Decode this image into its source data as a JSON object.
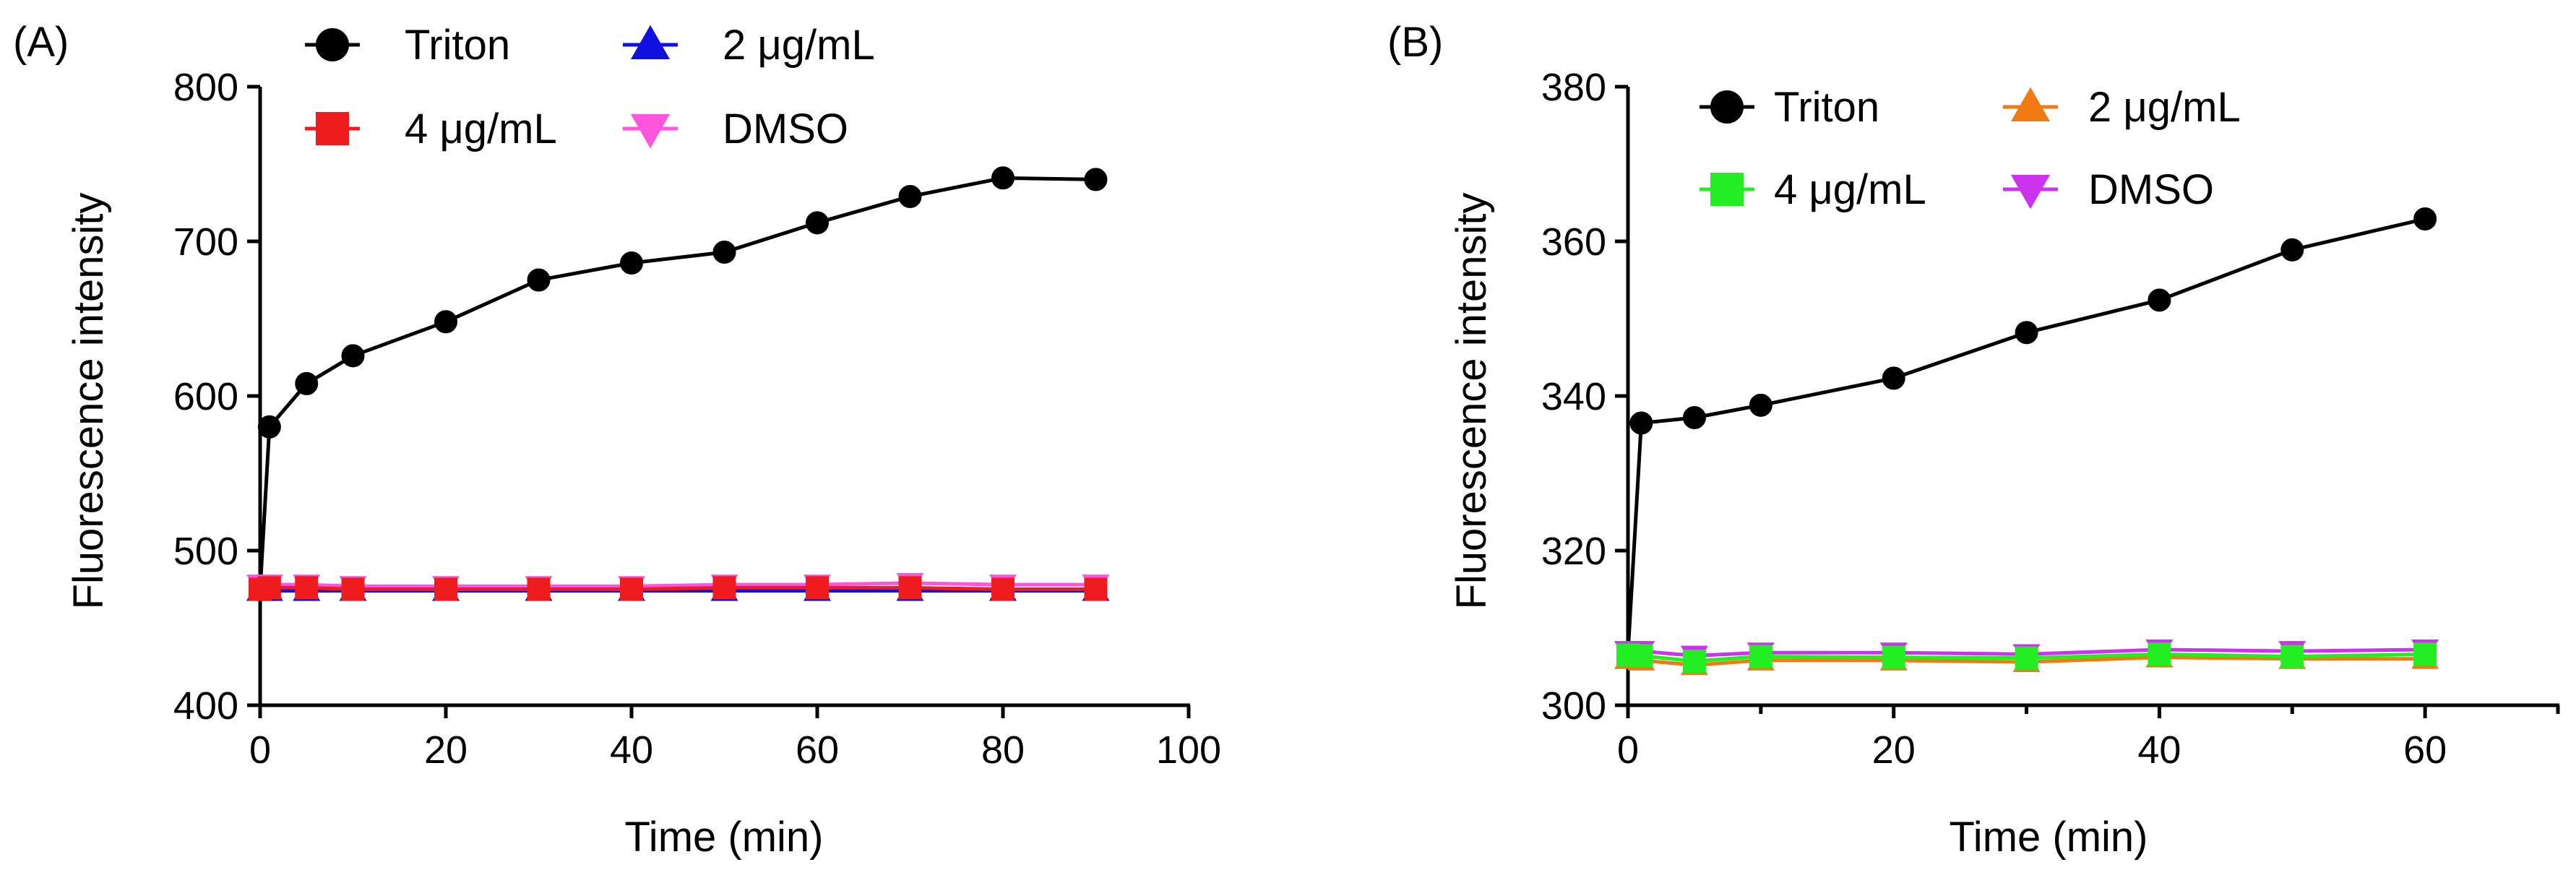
{
  "chart_data": [
    {
      "type": "line",
      "panel_label": "(A)",
      "title": "",
      "xlabel": "Time (min)",
      "ylabel": "Fluorescence intensity",
      "xlim": [
        0,
        100
      ],
      "ylim": [
        400,
        800
      ],
      "xticks": [
        0,
        20,
        40,
        60,
        80,
        100
      ],
      "yticks": [
        400,
        500,
        600,
        700,
        800
      ],
      "xtick_labels": [
        "0",
        "20",
        "40",
        "60",
        "80",
        "100"
      ],
      "ytick_labels": [
        "400",
        "500",
        "600",
        "700",
        "800"
      ],
      "grid": false,
      "legend_position": "top",
      "legend_columns": [
        [
          "Triton",
          "4 μg/mL"
        ],
        [
          "2 μg/mL",
          "DMSO"
        ]
      ],
      "series": [
        {
          "name": "Triton",
          "color": "#000000",
          "marker": "circle",
          "x": [
            0,
            1,
            5,
            10,
            20,
            30,
            40,
            50,
            60,
            70,
            80,
            90
          ],
          "values": [
            475,
            580,
            608,
            626,
            648,
            675,
            686,
            693,
            712,
            729,
            741,
            740
          ]
        },
        {
          "name": "2 μg/mL",
          "color": "#1010e0",
          "marker": "triangle-up",
          "x": [
            0,
            1,
            5,
            10,
            20,
            30,
            40,
            50,
            60,
            70,
            80,
            90
          ],
          "values": [
            474,
            474,
            474,
            474,
            474,
            474,
            474,
            474,
            474,
            474,
            474,
            474
          ]
        },
        {
          "name": "DMSO",
          "color": "#ff55dd",
          "marker": "triangle-down",
          "x": [
            0,
            1,
            5,
            10,
            20,
            30,
            40,
            50,
            60,
            70,
            80,
            90
          ],
          "values": [
            478,
            478,
            478,
            477,
            477,
            477,
            477,
            478,
            478,
            479,
            478,
            478
          ]
        },
        {
          "name": "4 μg/mL",
          "color": "#ee1c1c",
          "marker": "square",
          "x": [
            0,
            1,
            5,
            10,
            20,
            30,
            40,
            50,
            60,
            70,
            80,
            90
          ],
          "values": [
            475,
            476,
            476,
            475,
            475,
            475,
            475,
            476,
            476,
            476,
            475,
            475
          ]
        }
      ]
    },
    {
      "type": "line",
      "panel_label": "(B)",
      "title": "",
      "xlabel": "Time (min)",
      "ylabel": "Fluorescence intensity",
      "xlim": [
        0,
        70
      ],
      "ylim": [
        300,
        380
      ],
      "xticks": [
        0,
        20,
        40,
        60
      ],
      "xticks_minor": [
        10,
        30,
        50,
        70
      ],
      "yticks": [
        300,
        320,
        340,
        360,
        380
      ],
      "xtick_labels": [
        "0",
        "20",
        "40",
        "60"
      ],
      "ytick_labels": [
        "300",
        "320",
        "340",
        "360",
        "380"
      ],
      "grid": false,
      "legend_position": "top",
      "legend_columns": [
        [
          "Triton",
          "4 μg/mL"
        ],
        [
          "2 μg/mL",
          "DMSO"
        ]
      ],
      "series": [
        {
          "name": "Triton",
          "color": "#000000",
          "marker": "circle",
          "x": [
            0,
            1,
            5,
            10,
            20,
            30,
            40,
            50,
            60
          ],
          "values": [
            306.8,
            336.5,
            337.2,
            338.8,
            342.3,
            348.2,
            352.4,
            358.9,
            362.9
          ]
        },
        {
          "name": "2 μg/mL",
          "color": "#f07a14",
          "marker": "triangle-up",
          "x": [
            0,
            1,
            5,
            10,
            20,
            30,
            40,
            50,
            60
          ],
          "values": [
            306.0,
            305.8,
            305.2,
            305.8,
            305.8,
            305.6,
            306.2,
            306.0,
            306.0
          ]
        },
        {
          "name": "DMSO",
          "color": "#cc33ee",
          "marker": "triangle-down",
          "x": [
            0,
            1,
            5,
            10,
            20,
            30,
            40,
            50,
            60
          ],
          "values": [
            307.0,
            307.0,
            306.4,
            306.8,
            306.8,
            306.6,
            307.2,
            307.0,
            307.2
          ]
        },
        {
          "name": "4 μg/mL",
          "color": "#22ee22",
          "marker": "square",
          "x": [
            0,
            1,
            5,
            10,
            20,
            30,
            40,
            50,
            60
          ],
          "values": [
            306.5,
            306.4,
            305.7,
            306.3,
            306.2,
            306.1,
            306.6,
            306.3,
            306.6
          ]
        }
      ]
    }
  ]
}
